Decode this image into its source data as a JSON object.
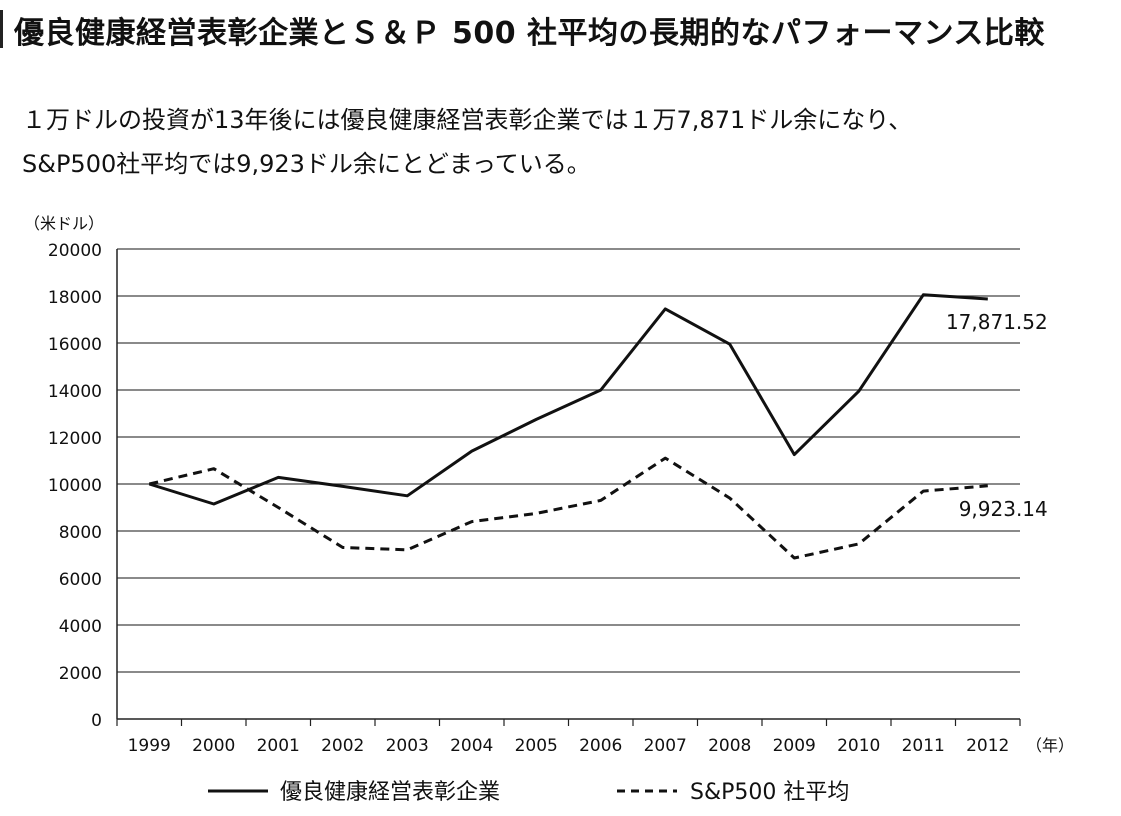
{
  "title": "優良健康経営表彰企業とＳ＆Ｐ 500 社平均の長期的なパフォーマンス比較",
  "subtitle": {
    "line1": "１万ドルの投資が13年後には優良健康経営表彰企業では１万7,871ドル余になり、",
    "line2": "S&P500社平均では9,923ドル余にとどまっている。"
  },
  "chart_data": {
    "type": "line",
    "title": "優良健康経営表彰企業とＳ＆Ｐ 500 社平均の長期的なパフォーマンス比較",
    "ylabel": "（米ドル）",
    "xlabel": "（年）",
    "x": [
      "1999",
      "2000",
      "2001",
      "2002",
      "2003",
      "2004",
      "2005",
      "2006",
      "2007",
      "2008",
      "2009",
      "2010",
      "2011",
      "2012"
    ],
    "ylim": [
      0,
      20000
    ],
    "yticks": [
      0,
      2000,
      4000,
      6000,
      8000,
      10000,
      12000,
      14000,
      16000,
      18000,
      20000
    ],
    "grid": true,
    "legend_position": "bottom",
    "series": [
      {
        "name": "優良健康経営表彰企業",
        "style": "solid",
        "color": "#111111",
        "values": [
          10000,
          9150,
          10280,
          9900,
          9500,
          11400,
          12750,
          14000,
          17450,
          15950,
          11250,
          13950,
          18050,
          17871.52
        ],
        "end_label": "17,871.52"
      },
      {
        "name": "S&P500 社平均",
        "style": "dashed",
        "color": "#111111",
        "values": [
          10000,
          10650,
          9000,
          7300,
          7200,
          8400,
          8750,
          9300,
          11100,
          9400,
          6850,
          7450,
          9700,
          9923.14
        ],
        "end_label": "9,923.14"
      }
    ]
  }
}
